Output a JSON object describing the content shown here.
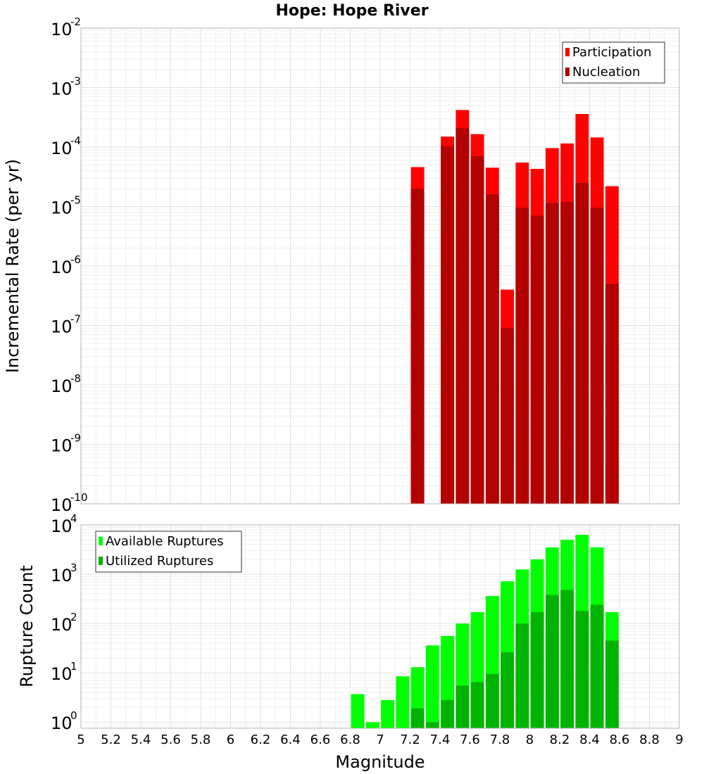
{
  "chart_data": [
    {
      "type": "bar",
      "title": "Hope: Hope River",
      "xlabel": "",
      "ylabel": "Incremental Rate (per yr)",
      "yscale": "log",
      "xlim": [
        5,
        9
      ],
      "ylim": [
        1e-10,
        0.01
      ],
      "ytick_base": "10",
      "ytick_exponents": [
        "-10",
        "-9",
        "-8",
        "-7",
        "-6",
        "-5",
        "-4",
        "-3",
        "-2"
      ],
      "bin_width": 0.1,
      "grid": true,
      "legend_position": "top-right",
      "x": [
        7.25,
        7.45,
        7.55,
        7.65,
        7.75,
        7.85,
        7.95,
        8.05,
        8.15,
        8.25,
        8.35,
        8.45,
        8.55
      ],
      "series": [
        {
          "name": "Participation",
          "color": "#ff0000",
          "values": [
            4.6e-05,
            0.00015,
            0.00042,
            0.000165,
            4.5e-05,
            4e-07,
            5.5e-05,
            4.3e-05,
            9.6e-05,
            0.000115,
            0.00036,
            0.000145,
            2.2e-05
          ]
        },
        {
          "name": "Nucleation",
          "color": "#b30000",
          "values": [
            2e-05,
            0.000105,
            0.00021,
            7e-05,
            1.6e-05,
            9e-08,
            9.5e-06,
            7e-06,
            1.15e-05,
            1.2e-05,
            2.5e-05,
            9.5e-06,
            5e-07
          ]
        }
      ]
    },
    {
      "type": "bar",
      "title": "",
      "xlabel": "Magnitude",
      "ylabel": "Rupture Count",
      "yscale": "log",
      "xlim": [
        5,
        9
      ],
      "ylim": [
        0.75,
        10000
      ],
      "ytick_base": "10",
      "ytick_exponents": [
        "0",
        "1",
        "2",
        "3",
        "4"
      ],
      "xticks": [
        "5",
        "5.2",
        "5.4",
        "5.6",
        "5.8",
        "6",
        "6.2",
        "6.4",
        "6.6",
        "6.8",
        "7",
        "7.2",
        "7.4",
        "7.6",
        "7.8",
        "8",
        "8.2",
        "8.4",
        "8.6",
        "8.8",
        "9"
      ],
      "bin_width": 0.1,
      "grid": true,
      "legend_position": "top-left",
      "x": [
        6.85,
        6.95,
        7.05,
        7.15,
        7.25,
        7.35,
        7.45,
        7.55,
        7.65,
        7.75,
        7.85,
        7.95,
        8.05,
        8.15,
        8.25,
        8.35,
        8.45,
        8.55
      ],
      "series": [
        {
          "name": "Available Ruptures",
          "color": "#00ff00",
          "values": [
            3.7,
            1,
            2.8,
            8.5,
            13,
            36,
            56,
            100,
            170,
            360,
            720,
            1250,
            2000,
            3500,
            5000,
            6300,
            3500,
            170
          ]
        },
        {
          "name": "Utilized Ruptures",
          "color": "#00b300",
          "values": [
            0,
            0,
            0,
            0,
            1.9,
            1,
            2.8,
            5.5,
            6.5,
            9.5,
            26,
            100,
            170,
            380,
            480,
            180,
            240,
            45
          ]
        }
      ]
    }
  ]
}
